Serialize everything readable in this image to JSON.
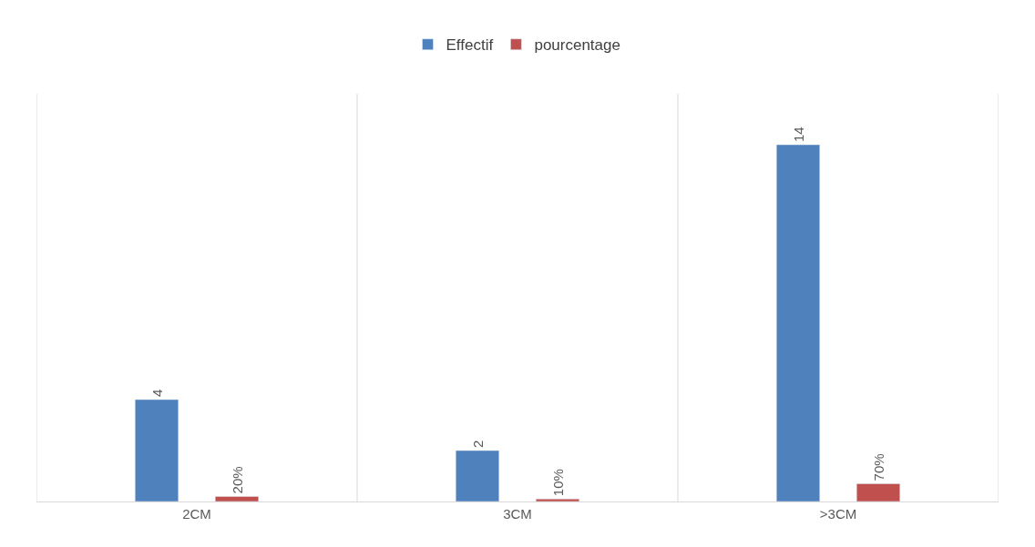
{
  "chart_data": {
    "type": "bar",
    "categories": [
      "2CM",
      "3CM",
      ">3CM"
    ],
    "series": [
      {
        "name": "Effectif",
        "color": "#4f81bd",
        "values": [
          4,
          2,
          14
        ],
        "value_labels": [
          "4",
          "2",
          "14"
        ]
      },
      {
        "name": "pourcentage",
        "color": "#c0504d",
        "values": [
          0.2,
          0.1,
          0.7
        ],
        "value_labels": [
          "20%",
          "10%",
          "70%"
        ]
      }
    ],
    "ylim": [
      0,
      16
    ],
    "tick_labels": "x",
    "grid": "x",
    "legend": "top"
  }
}
